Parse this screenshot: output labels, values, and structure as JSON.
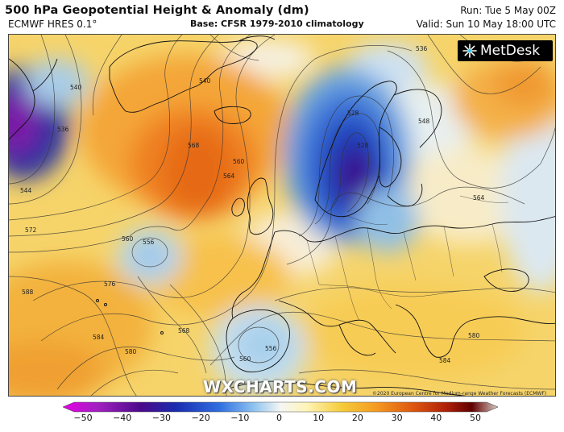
{
  "header": {
    "title": "500 hPa Geopotential Height & Anomaly (dm)",
    "model": "ECMWF HRES 0.1°",
    "base": "Base: CFSR 1979-2010 climatology",
    "run": "Run: Tue 5 May 00Z",
    "valid": "Valid: Sun 10 May 18:00 UTC"
  },
  "logo": {
    "text": "MetDesk",
    "icon": "metdesk-logo-icon"
  },
  "watermark": "WXCHARTS.COM",
  "copyright": "©2020 European Centre for Medium-range Weather Forecasts (ECMWF)",
  "contour_labels": [
    "536",
    "540",
    "528",
    "528",
    "536",
    "548",
    "568",
    "560",
    "564",
    "544",
    "572",
    "560",
    "556",
    "576",
    "588",
    "584",
    "580",
    "568",
    "556",
    "560",
    "584",
    "580",
    "556",
    "564"
  ],
  "colorbar": {
    "ticks": [
      "−50",
      "−40",
      "−30",
      "−20",
      "−10",
      "0",
      "10",
      "20",
      "30",
      "40",
      "50"
    ],
    "colors": [
      "#e600e6",
      "#a020c0",
      "#4b0a8a",
      "#1a2bb0",
      "#2f6fe0",
      "#8fc4f0",
      "#e8f2f8",
      "#fff4b8",
      "#f5cc3a",
      "#f59a22",
      "#e05a10",
      "#b02008",
      "#600000",
      "#c8b4a8"
    ]
  }
}
